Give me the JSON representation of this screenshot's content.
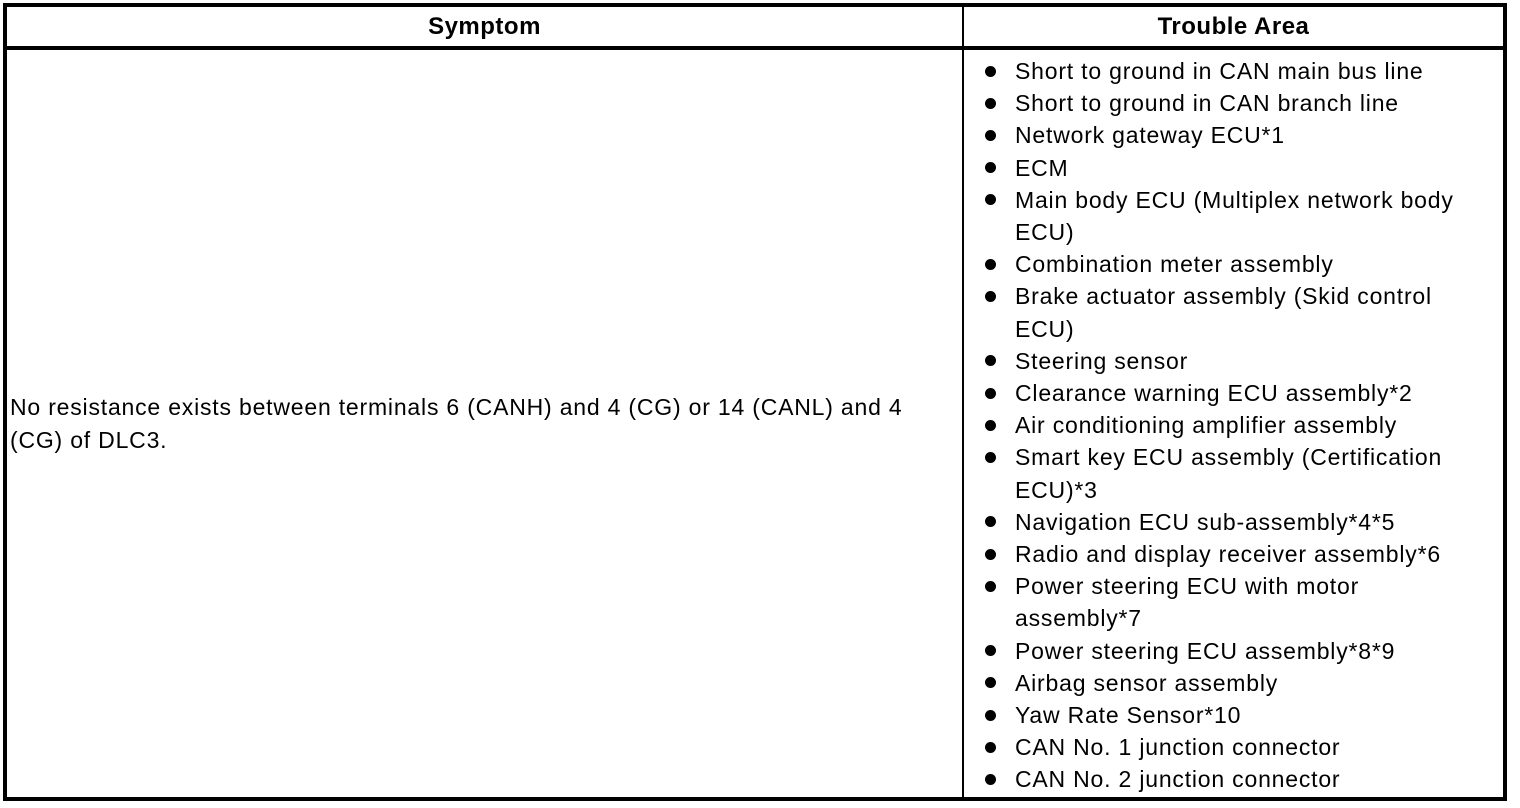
{
  "table": {
    "header": {
      "symptom": "Symptom",
      "trouble_area": "Trouble Area"
    },
    "row": {
      "symptom": "No resistance exists between terminals 6 (CANH) and 4 (CG) or 14 (CANL) and 4 (CG) of DLC3.",
      "trouble_areas": [
        "Short to ground in CAN main bus line",
        "Short to ground in CAN branch line",
        "Network gateway ECU*1",
        "ECM",
        "Main body ECU (Multiplex network body ECU)",
        "Combination meter assembly",
        "Brake actuator assembly (Skid control ECU)",
        "Steering sensor",
        "Clearance warning ECU assembly*2",
        "Air conditioning amplifier assembly",
        "Smart key ECU assembly (Certification ECU)*3",
        "Navigation ECU sub-assembly*4*5",
        "Radio and display receiver assembly*6",
        "Power steering ECU with motor assembly*7",
        "Power steering ECU assembly*8*9",
        "Airbag sensor assembly",
        "Yaw Rate Sensor*10",
        "CAN No. 1 junction connector",
        "CAN No. 2 junction connector"
      ]
    },
    "colors": {
      "background": "#ffffff",
      "border": "#000000",
      "text": "#000000",
      "bullet": "#000000"
    }
  }
}
